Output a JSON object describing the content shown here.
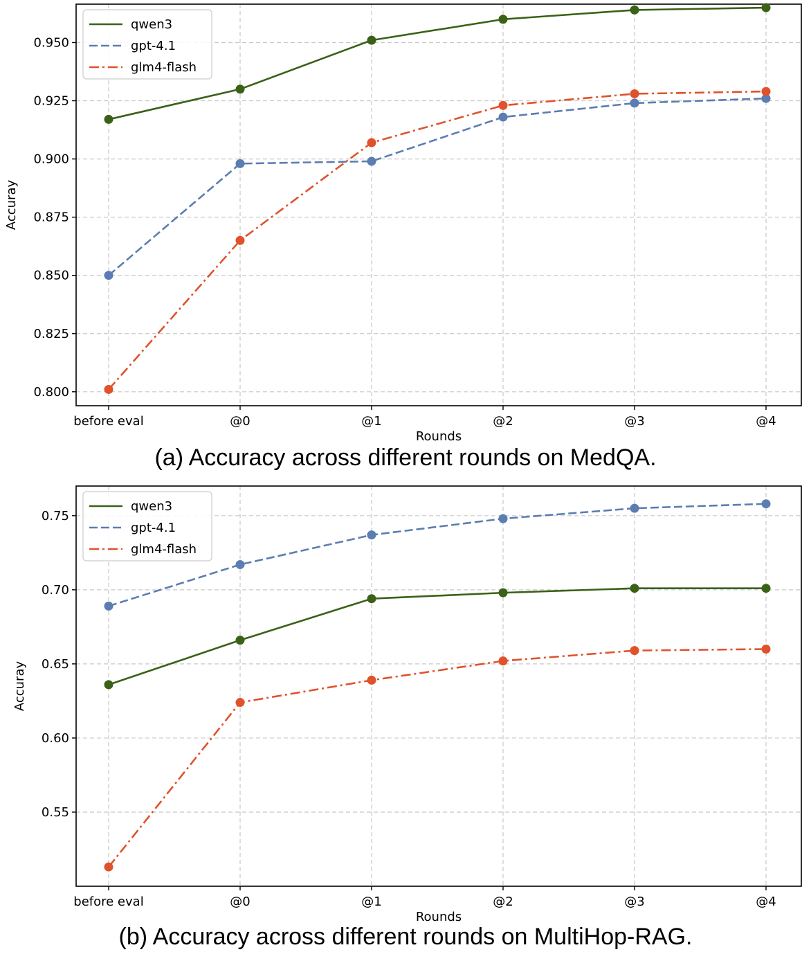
{
  "chart_data": [
    {
      "type": "line",
      "caption": "(a) Accuracy across different rounds on MedQA.",
      "xlabel": "Rounds",
      "ylabel": "Accuray",
      "categories": [
        "before eval",
        "@0",
        "@1",
        "@2",
        "@3",
        "@4"
      ],
      "yticks": [
        "0.800",
        "0.825",
        "0.850",
        "0.875",
        "0.900",
        "0.925",
        "0.950"
      ],
      "ylim": [
        0.794,
        0.9665
      ],
      "grid": true,
      "legend_position": "top-left",
      "series": [
        {
          "name": "qwen3",
          "color": "#3b6117",
          "style": "solid",
          "values": [
            0.917,
            0.93,
            0.951,
            0.96,
            0.964,
            0.965
          ]
        },
        {
          "name": "gpt-4.1",
          "color": "#5b7db1",
          "style": "dashed",
          "values": [
            0.85,
            0.898,
            0.899,
            0.918,
            0.924,
            0.926
          ]
        },
        {
          "name": "glm4-flash",
          "color": "#e0522b",
          "style": "dashdot",
          "values": [
            0.801,
            0.865,
            0.907,
            0.923,
            0.928,
            0.929
          ]
        }
      ]
    },
    {
      "type": "line",
      "caption": "(b) Accuracy across different rounds on MultiHop-RAG.",
      "xlabel": "Rounds",
      "ylabel": "Accuray",
      "categories": [
        "before eval",
        "@0",
        "@1",
        "@2",
        "@3",
        "@4"
      ],
      "yticks": [
        "0.55",
        "0.60",
        "0.65",
        "0.70",
        "0.75"
      ],
      "ylim": [
        0.5,
        0.77
      ],
      "grid": true,
      "legend_position": "top-left",
      "series": [
        {
          "name": "qwen3",
          "color": "#3b6117",
          "style": "solid",
          "values": [
            0.636,
            0.666,
            0.694,
            0.698,
            0.701,
            0.701
          ]
        },
        {
          "name": "gpt-4.1",
          "color": "#5b7db1",
          "style": "dashed",
          "values": [
            0.689,
            0.717,
            0.737,
            0.748,
            0.755,
            0.758
          ]
        },
        {
          "name": "glm4-flash",
          "color": "#e0522b",
          "style": "dashdot",
          "values": [
            0.513,
            0.624,
            0.639,
            0.652,
            0.659,
            0.66
          ]
        }
      ]
    }
  ]
}
